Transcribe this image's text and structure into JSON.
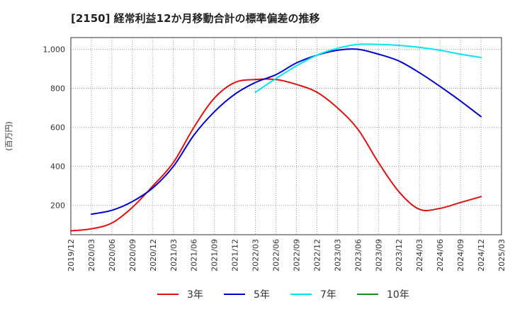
{
  "title": "[2150]  経常利益12か月移動合計の標準偏差の推移",
  "chart_data": {
    "type": "line",
    "title": "[2150]  経常利益12か月移動合計の標準偏差の推移",
    "ylabel": "(百万円)",
    "xlabel": "",
    "ylim": [
      50,
      1060
    ],
    "y_ticks": [
      200,
      400,
      600,
      800,
      1000
    ],
    "y_tick_labels": [
      "200",
      "400",
      "600",
      "800",
      "1,000"
    ],
    "x_ticks": [
      "2019/12",
      "2020/03",
      "2020/06",
      "2020/09",
      "2020/12",
      "2021/03",
      "2021/06",
      "2021/09",
      "2021/12",
      "2022/03",
      "2022/06",
      "2022/09",
      "2022/12",
      "2023/03",
      "2023/06",
      "2023/09",
      "2023/12",
      "2024/03",
      "2024/06",
      "2024/09",
      "2024/12",
      "2025/03"
    ],
    "grid": true,
    "legend_position": "bottom",
    "series": [
      {
        "name": "3年",
        "color": "#dd1111",
        "points": [
          [
            "2019/12",
            70
          ],
          [
            "2020/03",
            80
          ],
          [
            "2020/06",
            110
          ],
          [
            "2020/09",
            190
          ],
          [
            "2020/12",
            300
          ],
          [
            "2021/03",
            420
          ],
          [
            "2021/06",
            600
          ],
          [
            "2021/09",
            750
          ],
          [
            "2021/12",
            830
          ],
          [
            "2022/03",
            845
          ],
          [
            "2022/06",
            845
          ],
          [
            "2022/09",
            820
          ],
          [
            "2022/12",
            780
          ],
          [
            "2023/03",
            700
          ],
          [
            "2023/06",
            590
          ],
          [
            "2023/09",
            420
          ],
          [
            "2023/12",
            270
          ],
          [
            "2024/03",
            180
          ],
          [
            "2024/06",
            185
          ],
          [
            "2024/09",
            215
          ],
          [
            "2024/12",
            245
          ]
        ]
      },
      {
        "name": "5年",
        "color": "#0000cc",
        "points": [
          [
            "2020/03",
            155
          ],
          [
            "2020/06",
            175
          ],
          [
            "2020/09",
            220
          ],
          [
            "2020/12",
            290
          ],
          [
            "2021/03",
            400
          ],
          [
            "2021/06",
            560
          ],
          [
            "2021/09",
            680
          ],
          [
            "2021/12",
            770
          ],
          [
            "2022/03",
            830
          ],
          [
            "2022/06",
            870
          ],
          [
            "2022/09",
            930
          ],
          [
            "2022/12",
            970
          ],
          [
            "2023/03",
            995
          ],
          [
            "2023/06",
            1000
          ],
          [
            "2023/09",
            975
          ],
          [
            "2023/12",
            940
          ],
          [
            "2024/03",
            880
          ],
          [
            "2024/06",
            810
          ],
          [
            "2024/09",
            735
          ],
          [
            "2024/12",
            655
          ]
        ]
      },
      {
        "name": "7年",
        "color": "#00e5ee",
        "points": [
          [
            "2022/03",
            780
          ],
          [
            "2022/06",
            850
          ],
          [
            "2022/09",
            915
          ],
          [
            "2022/12",
            970
          ],
          [
            "2023/03",
            1005
          ],
          [
            "2023/06",
            1025
          ],
          [
            "2023/09",
            1025
          ],
          [
            "2023/12",
            1020
          ],
          [
            "2024/03",
            1010
          ],
          [
            "2024/06",
            995
          ],
          [
            "2024/09",
            975
          ],
          [
            "2024/12",
            958
          ]
        ]
      },
      {
        "name": "10年",
        "color": "#228b22",
        "points": []
      }
    ]
  }
}
